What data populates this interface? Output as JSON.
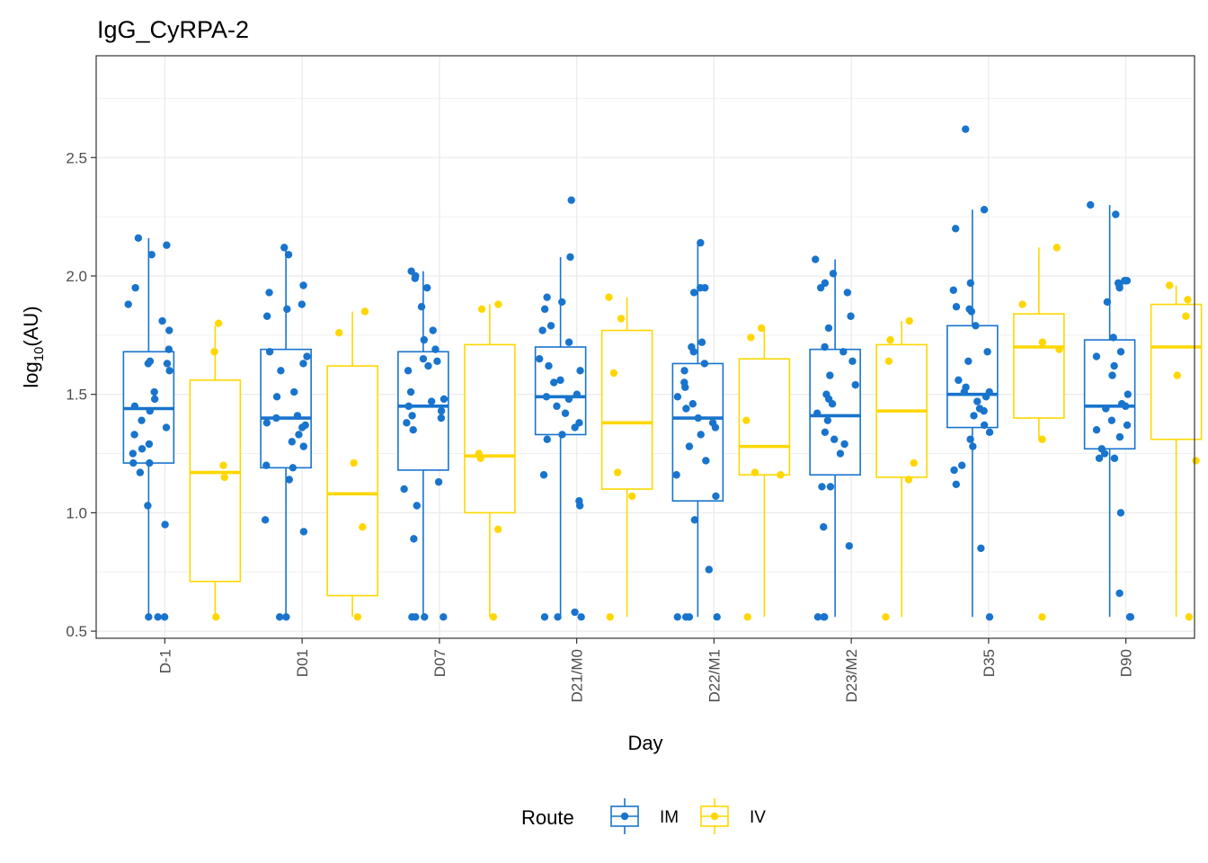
{
  "chart_data": {
    "type": "boxplot",
    "title": "IgG_CyRPA-2",
    "xlabel": "Day",
    "ylabel_main": "log",
    "ylabel_sub": "10",
    "ylabel_tail": "(AU)",
    "ylim": [
      0.47,
      2.93
    ],
    "yticks": [
      0.5,
      1.0,
      1.5,
      2.0,
      2.5
    ],
    "ytick_labels": [
      "0.5",
      "1.0",
      "1.5",
      "2.0",
      "2.5"
    ],
    "grid": true,
    "legend": {
      "title": "Route",
      "position": "bottom"
    },
    "categories": [
      "D-1",
      "D01",
      "D07",
      "D21/M0",
      "D22/M1",
      "D23/M2",
      "D35",
      "D90"
    ],
    "series": [
      {
        "name": "IM",
        "color": "#1874CD",
        "boxes": [
          {
            "q1": 1.21,
            "median": 1.44,
            "q3": 1.68,
            "whisker_low": 0.56,
            "whisker_high": 2.16
          },
          {
            "q1": 1.19,
            "median": 1.4,
            "q3": 1.69,
            "whisker_low": 0.56,
            "whisker_high": 2.12
          },
          {
            "q1": 1.18,
            "median": 1.45,
            "q3": 1.68,
            "whisker_low": 0.56,
            "whisker_high": 2.02
          },
          {
            "q1": 1.33,
            "median": 1.49,
            "q3": 1.7,
            "whisker_low": 0.56,
            "whisker_high": 2.08
          },
          {
            "q1": 1.05,
            "median": 1.4,
            "q3": 1.63,
            "whisker_low": 0.56,
            "whisker_high": 2.14
          },
          {
            "q1": 1.16,
            "median": 1.41,
            "q3": 1.69,
            "whisker_low": 0.56,
            "whisker_high": 2.07
          },
          {
            "q1": 1.36,
            "median": 1.5,
            "q3": 1.79,
            "whisker_low": 0.56,
            "whisker_high": 2.28
          },
          {
            "q1": 1.27,
            "median": 1.45,
            "q3": 1.73,
            "whisker_low": 0.56,
            "whisker_high": 2.3
          }
        ],
        "points": [
          [
            2.16,
            2.13,
            2.09,
            1.95,
            1.88,
            1.81,
            1.77,
            1.69,
            1.64,
            1.63,
            1.63,
            1.6,
            1.51,
            1.48,
            1.45,
            1.43,
            1.39,
            1.36,
            1.33,
            1.29,
            1.27,
            1.25,
            1.21,
            1.21,
            1.17,
            1.03,
            0.95,
            0.56,
            0.56,
            0.56
          ],
          [
            2.12,
            2.09,
            1.96,
            1.93,
            1.88,
            1.86,
            1.83,
            1.68,
            1.66,
            1.63,
            1.6,
            1.51,
            1.49,
            1.41,
            1.4,
            1.38,
            1.37,
            1.36,
            1.33,
            1.3,
            1.28,
            1.2,
            1.19,
            1.14,
            0.97,
            0.92,
            0.56,
            0.56
          ],
          [
            2.02,
            2.0,
            1.99,
            1.95,
            1.87,
            1.77,
            1.73,
            1.69,
            1.65,
            1.64,
            1.62,
            1.6,
            1.51,
            1.48,
            1.47,
            1.45,
            1.43,
            1.41,
            1.4,
            1.38,
            1.35,
            1.13,
            1.1,
            1.03,
            0.89,
            0.56,
            0.56,
            0.56,
            0.56
          ],
          [
            2.32,
            2.08,
            1.91,
            1.89,
            1.86,
            1.79,
            1.77,
            1.72,
            1.65,
            1.62,
            1.6,
            1.56,
            1.55,
            1.5,
            1.49,
            1.48,
            1.45,
            1.42,
            1.38,
            1.36,
            1.33,
            1.31,
            1.16,
            1.05,
            1.03,
            0.58,
            0.56,
            0.56,
            0.56
          ],
          [
            2.14,
            1.95,
            1.95,
            1.93,
            1.72,
            1.7,
            1.68,
            1.63,
            1.6,
            1.55,
            1.53,
            1.49,
            1.46,
            1.44,
            1.4,
            1.38,
            1.36,
            1.33,
            1.28,
            1.22,
            1.16,
            1.07,
            0.97,
            0.76,
            0.56,
            0.56,
            0.56,
            0.56
          ],
          [
            2.07,
            2.01,
            1.97,
            1.95,
            1.93,
            1.83,
            1.78,
            1.7,
            1.68,
            1.64,
            1.58,
            1.54,
            1.5,
            1.48,
            1.46,
            1.42,
            1.39,
            1.34,
            1.31,
            1.29,
            1.25,
            1.11,
            1.11,
            0.94,
            0.86,
            0.56,
            0.56,
            0.56
          ],
          [
            2.62,
            2.28,
            2.2,
            1.97,
            1.94,
            1.87,
            1.86,
            1.85,
            1.79,
            1.68,
            1.64,
            1.56,
            1.53,
            1.51,
            1.51,
            1.49,
            1.47,
            1.44,
            1.43,
            1.41,
            1.37,
            1.34,
            1.31,
            1.28,
            1.2,
            1.18,
            1.12,
            0.85,
            0.56
          ],
          [
            2.3,
            2.26,
            1.98,
            1.98,
            1.97,
            1.96,
            1.95,
            1.89,
            1.74,
            1.68,
            1.66,
            1.62,
            1.58,
            1.5,
            1.46,
            1.45,
            1.44,
            1.39,
            1.37,
            1.35,
            1.32,
            1.27,
            1.25,
            1.23,
            1.23,
            1.0,
            0.66,
            0.56,
            0.56
          ]
        ]
      },
      {
        "name": "IV",
        "color": "#FFD700",
        "boxes": [
          {
            "q1": 0.71,
            "median": 1.17,
            "q3": 1.56,
            "whisker_low": 0.56,
            "whisker_high": 1.79
          },
          {
            "q1": 0.65,
            "median": 1.08,
            "q3": 1.62,
            "whisker_low": 0.56,
            "whisker_high": 1.85
          },
          {
            "q1": 1.0,
            "median": 1.24,
            "q3": 1.71,
            "whisker_low": 0.56,
            "whisker_high": 1.88
          },
          {
            "q1": 1.1,
            "median": 1.38,
            "q3": 1.77,
            "whisker_low": 0.56,
            "whisker_high": 1.91
          },
          {
            "q1": 1.16,
            "median": 1.28,
            "q3": 1.65,
            "whisker_low": 0.56,
            "whisker_high": 1.78
          },
          {
            "q1": 1.15,
            "median": 1.43,
            "q3": 1.71,
            "whisker_low": 0.56,
            "whisker_high": 1.81
          },
          {
            "q1": 1.4,
            "median": 1.7,
            "q3": 1.84,
            "whisker_low": 1.31,
            "whisker_high": 2.12
          },
          {
            "q1": 1.31,
            "median": 1.7,
            "q3": 1.88,
            "whisker_low": 0.56,
            "whisker_high": 1.96
          }
        ],
        "points": [
          [
            1.8,
            1.68,
            1.2,
            1.15,
            0.56
          ],
          [
            1.85,
            1.76,
            1.21,
            0.94,
            0.56
          ],
          [
            1.88,
            1.86,
            1.25,
            1.23,
            0.93,
            0.56
          ],
          [
            1.91,
            1.82,
            1.59,
            1.17,
            1.07,
            0.56
          ],
          [
            1.78,
            1.74,
            1.39,
            1.17,
            1.16,
            0.56
          ],
          [
            1.81,
            1.73,
            1.64,
            1.21,
            1.14,
            0.56
          ],
          [
            2.12,
            1.88,
            1.72,
            1.69,
            1.31,
            0.56
          ],
          [
            1.96,
            1.9,
            1.83,
            1.58,
            1.22,
            0.56
          ]
        ]
      }
    ]
  }
}
